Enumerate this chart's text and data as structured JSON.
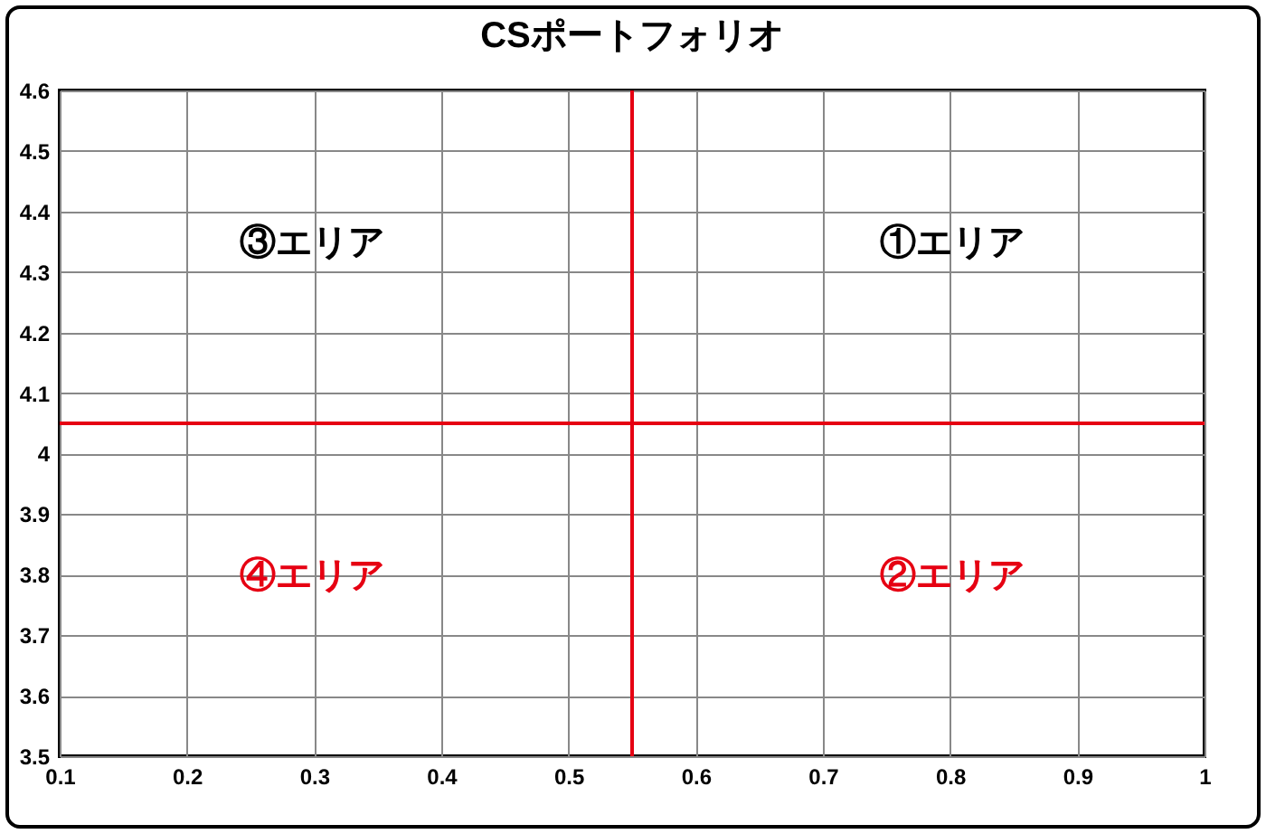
{
  "chart_data": {
    "type": "scatter",
    "title": "CSポートフォリオ",
    "xlim": [
      0.1,
      1
    ],
    "xticks": [
      0.1,
      0.2,
      0.3,
      0.4,
      0.5,
      0.6,
      0.7,
      0.8,
      0.9,
      1
    ],
    "ylim": [
      3.5,
      4.6
    ],
    "yticks": [
      3.5,
      3.6,
      3.7,
      3.8,
      3.9,
      4,
      4.1,
      4.2,
      4.3,
      4.4,
      4.5,
      4.6
    ],
    "grid": true,
    "ref_lines": [
      {
        "axis": "x",
        "value": 0.55,
        "color": "#e60012"
      },
      {
        "axis": "y",
        "value": 4.05,
        "color": "#e60012"
      }
    ],
    "annotations": [
      "③エリア",
      "①エリア",
      "④エリア",
      "②エリア"
    ]
  }
}
